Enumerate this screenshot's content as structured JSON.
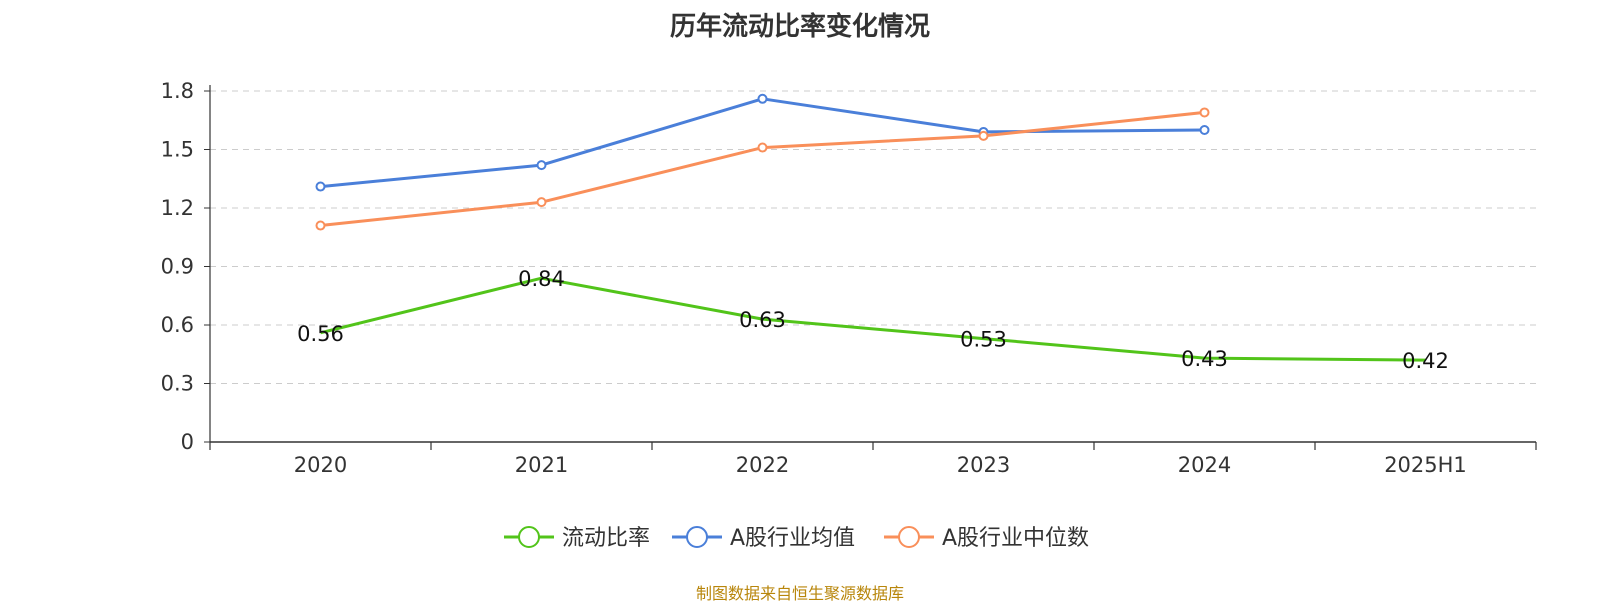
{
  "title": "历年流动比率变化情况",
  "source": "制图数据来自恒生聚源数据库",
  "chart_data": {
    "type": "line",
    "title": "历年流动比率变化情况",
    "categories": [
      "2020",
      "2021",
      "2022",
      "2023",
      "2024",
      "2025H1"
    ],
    "ylim": [
      0,
      1.8
    ],
    "yticks": [
      "0",
      "0.3",
      "0.6",
      "0.9",
      "1.2",
      "1.5",
      "1.8"
    ],
    "grid": true,
    "legend_position": "bottom",
    "series": [
      {
        "name": "流动比率",
        "color": "#52c41a",
        "values": [
          0.56,
          0.84,
          0.63,
          0.53,
          0.43,
          0.42
        ],
        "labels": [
          "0.56",
          "0.84",
          "0.63",
          "0.53",
          "0.43",
          "0.42"
        ],
        "show_labels": true,
        "show_markers": false
      },
      {
        "name": "A股行业均值",
        "color": "#4a7fd9",
        "values": [
          1.31,
          1.42,
          1.76,
          1.59,
          1.6,
          null
        ],
        "show_labels": false,
        "show_markers": true
      },
      {
        "name": "A股行业中位数",
        "color": "#f98f5a",
        "values": [
          1.11,
          1.23,
          1.51,
          1.57,
          1.69,
          null
        ],
        "show_labels": false,
        "show_markers": true
      }
    ]
  }
}
